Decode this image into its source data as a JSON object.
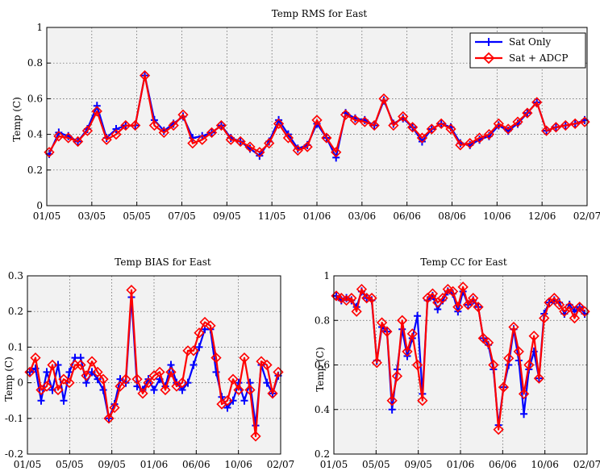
{
  "chart_data": [
    {
      "type": "line",
      "title": "Temp RMS for East",
      "ylabel": "Temp (C)",
      "xlabel": "",
      "ylim": [
        0,
        1
      ],
      "yticks": [
        0,
        0.2,
        0.4,
        0.6,
        0.8,
        1
      ],
      "ytick_labels": [
        "0",
        "0.2",
        "0.4",
        "0.6",
        "0.8",
        "1"
      ],
      "xticks": [
        "01/05",
        "03/05",
        "05/05",
        "07/05",
        "09/05",
        "11/05",
        "01/06",
        "03/06",
        "06/06",
        "08/06",
        "10/06",
        "12/06",
        "02/07"
      ],
      "grid": true,
      "legend": "top-right",
      "legend_entries": [
        "Sat Only",
        "Sat + ADCP"
      ],
      "series": [
        {
          "name": "Sat Only",
          "color": "#0000ff",
          "marker": "plus",
          "values": [
            0.29,
            0.41,
            0.39,
            0.36,
            0.43,
            0.56,
            0.38,
            0.43,
            0.45,
            0.45,
            0.73,
            0.48,
            0.42,
            0.46,
            0.5,
            0.38,
            0.39,
            0.41,
            0.45,
            0.38,
            0.36,
            0.32,
            0.28,
            0.36,
            0.48,
            0.4,
            0.32,
            0.34,
            0.46,
            0.38,
            0.27,
            0.52,
            0.49,
            0.48,
            0.45,
            0.59,
            0.46,
            0.49,
            0.44,
            0.36,
            0.43,
            0.46,
            0.44,
            0.35,
            0.34,
            0.37,
            0.39,
            0.45,
            0.42,
            0.46,
            0.52,
            0.58,
            0.42,
            0.44,
            0.45,
            0.46,
            0.48
          ]
        },
        {
          "name": "Sat + ADCP",
          "color": "#ff0000",
          "marker": "diamond",
          "values": [
            0.3,
            0.39,
            0.38,
            0.36,
            0.42,
            0.53,
            0.37,
            0.4,
            0.45,
            0.45,
            0.73,
            0.45,
            0.41,
            0.45,
            0.51,
            0.35,
            0.37,
            0.41,
            0.45,
            0.37,
            0.36,
            0.33,
            0.3,
            0.35,
            0.46,
            0.38,
            0.31,
            0.33,
            0.48,
            0.38,
            0.3,
            0.51,
            0.48,
            0.47,
            0.45,
            0.6,
            0.45,
            0.5,
            0.44,
            0.38,
            0.43,
            0.46,
            0.43,
            0.34,
            0.35,
            0.38,
            0.4,
            0.46,
            0.43,
            0.47,
            0.52,
            0.58,
            0.42,
            0.44,
            0.45,
            0.46,
            0.47
          ]
        }
      ]
    },
    {
      "type": "line",
      "title": "Temp BIAS for East",
      "ylabel": "Temp (C)",
      "xlabel": "",
      "ylim": [
        -0.2,
        0.3
      ],
      "yticks": [
        -0.2,
        -0.1,
        0,
        0.1,
        0.2,
        0.3
      ],
      "ytick_labels": [
        "-0.2",
        "-0.1",
        "0",
        "0.1",
        "0.2",
        "0.3"
      ],
      "xticks": [
        "01/05",
        "05/05",
        "09/05",
        "01/06",
        "06/06",
        "10/06",
        "02/07"
      ],
      "grid": true,
      "series": [
        {
          "name": "Sat Only",
          "color": "#0000ff",
          "marker": "plus",
          "values": [
            0.03,
            0.04,
            -0.05,
            0.03,
            -0.02,
            0.05,
            -0.05,
            0.03,
            0.07,
            0.07,
            0.0,
            0.03,
            0.01,
            -0.02,
            -0.1,
            -0.06,
            0.01,
            0.0,
            0.24,
            -0.01,
            -0.02,
            0.01,
            -0.02,
            0.01,
            -0.01,
            0.05,
            0.0,
            -0.02,
            0.0,
            0.05,
            0.1,
            0.15,
            0.15,
            0.03,
            -0.04,
            -0.07,
            -0.05,
            0.0,
            -0.05,
            0.0,
            -0.12,
            0.05,
            0.0,
            -0.03,
            0.02
          ]
        },
        {
          "name": "Sat + ADCP",
          "color": "#ff0000",
          "marker": "diamond",
          "values": [
            0.03,
            0.07,
            -0.02,
            -0.01,
            0.05,
            -0.02,
            0.01,
            0.0,
            0.05,
            0.05,
            0.02,
            0.06,
            0.03,
            0.01,
            -0.1,
            -0.07,
            -0.01,
            0.01,
            0.26,
            0.01,
            -0.03,
            0.0,
            0.02,
            0.03,
            -0.02,
            0.03,
            -0.01,
            0.0,
            0.09,
            0.09,
            0.14,
            0.17,
            0.16,
            0.07,
            -0.06,
            -0.05,
            0.01,
            -0.02,
            0.07,
            -0.02,
            -0.15,
            0.06,
            0.05,
            -0.03,
            0.03
          ]
        }
      ]
    },
    {
      "type": "line",
      "title": "Temp CC for East",
      "ylabel": "Temp (C)",
      "xlabel": "",
      "ylim": [
        0.2,
        1
      ],
      "yticks": [
        0.2,
        0.4,
        0.6,
        0.8,
        1
      ],
      "ytick_labels": [
        "0.2",
        "0.4",
        "0.6",
        "0.8",
        "1"
      ],
      "xticks": [
        "01/05",
        "05/05",
        "09/05",
        "01/06",
        "06/06",
        "10/06",
        "02/07"
      ],
      "grid": true,
      "series": [
        {
          "name": "Sat Only",
          "color": "#0000ff",
          "marker": "plus",
          "values": [
            0.91,
            0.89,
            0.9,
            0.89,
            0.86,
            0.93,
            0.9,
            0.89,
            0.62,
            0.77,
            0.75,
            0.4,
            0.58,
            0.76,
            0.64,
            0.72,
            0.82,
            0.47,
            0.89,
            0.91,
            0.85,
            0.89,
            0.93,
            0.92,
            0.84,
            0.93,
            0.87,
            0.89,
            0.86,
            0.72,
            0.69,
            0.58,
            0.33,
            0.5,
            0.6,
            0.76,
            0.62,
            0.38,
            0.58,
            0.66,
            0.54,
            0.83,
            0.88,
            0.89,
            0.88,
            0.83,
            0.87,
            0.84,
            0.86,
            0.83
          ]
        },
        {
          "name": "Sat + ADCP",
          "color": "#ff0000",
          "marker": "diamond",
          "values": [
            0.91,
            0.9,
            0.89,
            0.9,
            0.84,
            0.94,
            0.9,
            0.9,
            0.61,
            0.79,
            0.75,
            0.44,
            0.55,
            0.8,
            0.66,
            0.74,
            0.6,
            0.44,
            0.9,
            0.92,
            0.88,
            0.9,
            0.94,
            0.93,
            0.86,
            0.95,
            0.87,
            0.9,
            0.86,
            0.72,
            0.7,
            0.6,
            0.31,
            0.5,
            0.63,
            0.77,
            0.66,
            0.47,
            0.6,
            0.73,
            0.54,
            0.81,
            0.88,
            0.9,
            0.87,
            0.84,
            0.86,
            0.81,
            0.86,
            0.84
          ]
        }
      ]
    }
  ]
}
